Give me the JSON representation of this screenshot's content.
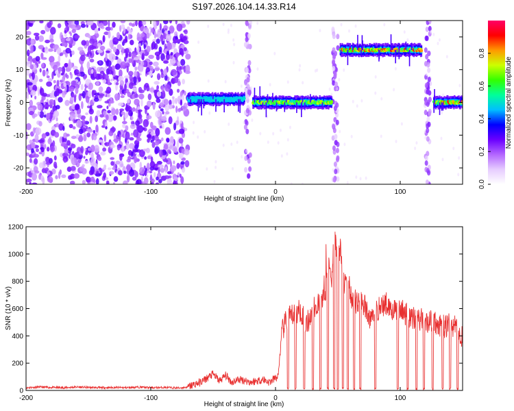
{
  "chart_data": [
    {
      "type": "heatmap",
      "title": "S197.2026.104.14.33.R14",
      "xlabel": "Height of straight line (km)",
      "ylabel": "Frequency (Hz)",
      "xlim": [
        -200,
        150
      ],
      "ylim": [
        -25,
        25
      ],
      "xticks": [
        -200,
        -100,
        0,
        100
      ],
      "xtick_labels": [
        "-200",
        "-100",
        "0",
        "100"
      ],
      "yticks": [
        -20,
        -10,
        0,
        10,
        20
      ],
      "ytick_labels": [
        "-20",
        "-10",
        "0",
        "10",
        "20"
      ],
      "colorbar": {
        "label": "Normalized spectral amplitude",
        "range": [
          0.0,
          1.0
        ],
        "ticks": [
          0.0,
          0.2,
          0.4,
          0.6,
          0.8
        ],
        "tick_labels": [
          "0.0",
          "0.2",
          "0.4",
          "0.6",
          "0.8"
        ],
        "colors": [
          "#ffffff",
          "#e6ccff",
          "#b366ff",
          "#6a00ff",
          "#0000ff",
          "#00bfff",
          "#00ff99",
          "#33ff00",
          "#ccff00",
          "#ff9900",
          "#ff0000",
          "#ff0066"
        ]
      },
      "noise_region": {
        "x_from": -200,
        "x_to": -70
      },
      "vertical_streaks": [
        -22,
        48,
        122
      ],
      "ridge_segments": [
        {
          "x_from": -70,
          "x_to": -25,
          "freq": 1,
          "peak": 0.45
        },
        {
          "x_from": -18,
          "x_to": 45,
          "freq": 0,
          "peak": 0.75
        },
        {
          "x_from": 52,
          "x_to": 117,
          "freq": 16,
          "peak": 0.95
        },
        {
          "x_from": 127,
          "x_to": 150,
          "freq": 0,
          "peak": 0.9
        }
      ]
    },
    {
      "type": "line",
      "xlabel": "Height of straight line (km)",
      "ylabel": "SNR (10 * v/v)",
      "xlim": [
        -200,
        150
      ],
      "ylim": [
        0,
        1200
      ],
      "xticks": [
        -200,
        -100,
        0,
        100
      ],
      "xtick_labels": [
        "-200",
        "-100",
        "0",
        "100"
      ],
      "yticks": [
        0,
        200,
        400,
        600,
        800,
        1000,
        1200
      ],
      "ytick_labels": [
        "0",
        "200",
        "400",
        "600",
        "800",
        "1000",
        "1200"
      ],
      "series": [
        {
          "name": "SNR",
          "color": "#e83030",
          "x": [
            -200,
            -190,
            -180,
            -170,
            -160,
            -150,
            -140,
            -130,
            -120,
            -110,
            -100,
            -90,
            -80,
            -75,
            -70,
            -65,
            -60,
            -55,
            -50,
            -45,
            -40,
            -35,
            -30,
            -25,
            -20,
            -15,
            -10,
            -5,
            0,
            2,
            5,
            7,
            10,
            15,
            20,
            25,
            30,
            35,
            40,
            42,
            45,
            47,
            50,
            52,
            55,
            58,
            60,
            65,
            70,
            75,
            80,
            85,
            90,
            95,
            100,
            105,
            110,
            115,
            120,
            125,
            130,
            135,
            140,
            145,
            150
          ],
          "y": [
            20,
            25,
            22,
            20,
            25,
            22,
            20,
            22,
            20,
            25,
            20,
            22,
            18,
            20,
            25,
            45,
            60,
            90,
            120,
            70,
            110,
            60,
            80,
            75,
            60,
            70,
            80,
            60,
            90,
            100,
            410,
            480,
            520,
            560,
            590,
            480,
            600,
            640,
            700,
            1000,
            820,
            1200,
            900,
            1050,
            780,
            900,
            700,
            640,
            650,
            520,
            580,
            620,
            640,
            580,
            590,
            560,
            540,
            520,
            510,
            500,
            480,
            470,
            480,
            470,
            380
          ]
        }
      ],
      "dropouts": [
        10,
        16,
        23,
        30,
        36,
        42,
        47,
        50,
        54,
        58,
        63,
        68,
        80,
        98,
        106,
        113,
        119,
        126,
        134,
        140,
        146
      ]
    }
  ]
}
